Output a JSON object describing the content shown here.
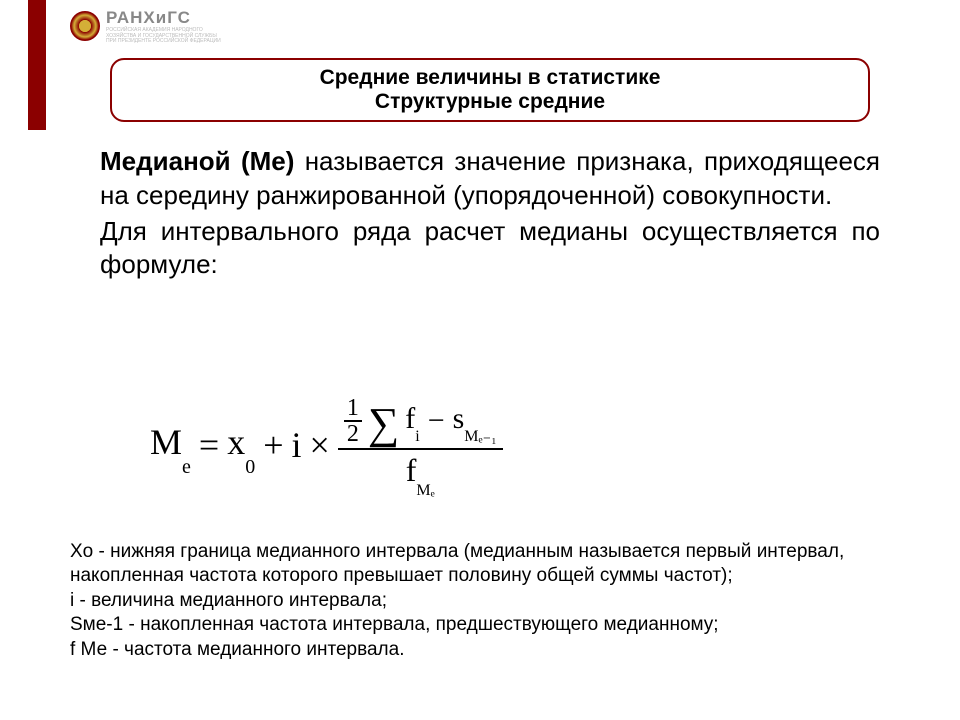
{
  "colors": {
    "accent": "#8b0000",
    "text": "#000000",
    "logo_gray": "#888888",
    "background": "#ffffff"
  },
  "logo": {
    "main": "РАНХиГС",
    "sub": "РОССИЙСКАЯ АКАДЕМИЯ НАРОДНОГО ХОЗЯЙСТВА И ГОСУДАРСТВЕННОЙ СЛУЖБЫ ПРИ ПРЕЗИДЕНТЕ РОССИЙСКОЙ ФЕДЕРАЦИИ"
  },
  "title": {
    "line1": "Средние величины в статистике",
    "line2": "Структурные средние"
  },
  "body": {
    "p1_bold": "Медианой (Ме)",
    "p1_rest": " называется значение признака, приходящееся на середину ранжированной (упорядоченной) совокупности.",
    "p2": "Для интервального ряда расчет медианы осуществляется по формуле:"
  },
  "formula": {
    "lhs_sym": "M",
    "lhs_sub": "e",
    "eq": "=",
    "x0_sym": "x",
    "x0_sub": "0",
    "plus": "+",
    "i_sym": "i",
    "times": "×",
    "half_top": "1",
    "half_bot": "2",
    "sigma": "∑",
    "fi": "f",
    "fi_sub": "i",
    "minus": "−",
    "s_sym": "s",
    "s_sub": "Mₑ₋₁",
    "den_f": "f",
    "den_sub": "Mₑ"
  },
  "legend": {
    "l1": "Xо - нижняя граница медианного интервала (медианным называется первый интервал, накопленная частота которого превышает половину общей суммы частот);",
    "l2": "i - величина медианного интервала;",
    "l3": "Sме-1 - накопленная частота интервала, предшествующего медианному;",
    "l4": "f Ме - частота медианного интервала."
  },
  "typography": {
    "title_fontsize": 21,
    "body_fontsize": 26,
    "legend_fontsize": 19,
    "formula_fontsize": 36,
    "font_family_body": "Arial",
    "font_family_formula": "Times New Roman"
  }
}
